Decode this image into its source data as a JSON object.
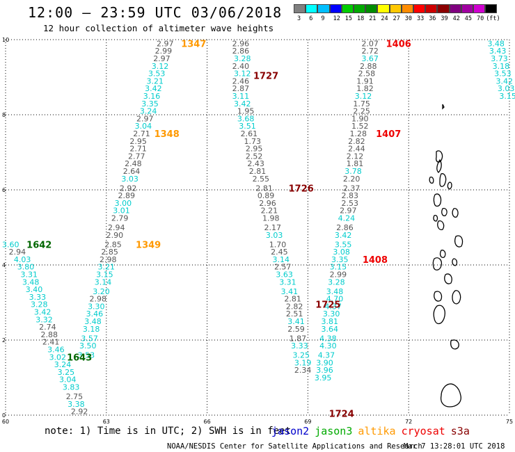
{
  "header": {
    "title": "12:00 – 23:59 UTC 03/06/2018",
    "subtitle": "12 hour collection of altimeter wave heights"
  },
  "legend": {
    "colors": [
      "#808080",
      "#00ffff",
      "#00bfff",
      "#0000ff",
      "#00cd00",
      "#00aa00",
      "#008c00",
      "#ffff00",
      "#ffc800",
      "#ff8c00",
      "#ff0000",
      "#cd0000",
      "#8b0000",
      "#800080",
      "#a000a0",
      "#d000d0",
      "#000000"
    ],
    "labels": [
      "3",
      "6",
      "9",
      "12",
      "15",
      "18",
      "21",
      "24",
      "27",
      "30",
      "33",
      "36",
      "39",
      "42",
      "45",
      "70",
      "(ft)"
    ]
  },
  "footer": {
    "note": "note: 1) Time is in UTC; 2) SWH is in feet",
    "credit": "NOAA/NESDIS Center for Satellite Applications and Research",
    "timestamp": "Mar  7 13:28:01 UTC 2018"
  },
  "satellites": [
    {
      "name": "jason2",
      "color": "#0000cc"
    },
    {
      "name": "jason3",
      "color": "#00aa00"
    },
    {
      "name": "altika",
      "color": "#ff9900"
    },
    {
      "name": "cryosat",
      "color": "#ee0000"
    },
    {
      "name": "s3a",
      "color": "#880000"
    }
  ],
  "chart_data": {
    "type": "scatter",
    "xlim": [
      60,
      75
    ],
    "ylim": [
      0,
      10
    ],
    "xticks": [
      "60",
      "63",
      "66",
      "69",
      "72",
      "75"
    ],
    "yticks": [
      "0",
      "2",
      "4",
      "6",
      "8",
      "10"
    ],
    "grid": true,
    "tracks": [
      {
        "time": "1642",
        "satellite": "jason3",
        "color": "#006600",
        "time_x": 61.0,
        "time_y": 4.55,
        "points": [
          [
            60.15,
            4.55,
            "3.60"
          ],
          [
            60.35,
            4.35,
            "2.94"
          ],
          [
            60.5,
            4.15,
            "4.03"
          ],
          [
            60.6,
            3.95,
            "3.80"
          ],
          [
            60.7,
            3.75,
            "3.31"
          ],
          [
            60.75,
            3.55,
            "3.48"
          ],
          [
            60.85,
            3.35,
            "3.40"
          ],
          [
            60.95,
            3.15,
            "3.33"
          ],
          [
            61.0,
            2.95,
            "3.28"
          ],
          [
            61.1,
            2.75,
            "3.42"
          ],
          [
            61.15,
            2.55,
            "3.32"
          ],
          [
            61.25,
            2.35,
            "2.74"
          ],
          [
            61.3,
            2.15,
            "2.88"
          ],
          [
            61.35,
            1.95,
            "2.41"
          ],
          [
            61.5,
            1.75,
            "3.46"
          ],
          [
            61.55,
            1.55,
            "3.02"
          ],
          [
            61.7,
            1.35,
            "3.24"
          ],
          [
            61.8,
            1.15,
            "3.25"
          ],
          [
            61.85,
            0.95,
            "3.04"
          ],
          [
            61.95,
            0.75,
            "3.83"
          ],
          [
            62.05,
            0.5,
            "2.75"
          ],
          [
            62.1,
            0.3,
            "3.38"
          ],
          [
            62.2,
            0.1,
            "2.92"
          ]
        ]
      },
      {
        "time": "1643",
        "satellite": "jason3",
        "color": "#006600",
        "time_x": 62.2,
        "time_y": 1.55,
        "points": []
      },
      {
        "time": "1347",
        "satellite": "altika",
        "color": "#ff9900",
        "time_x": 65.6,
        "time_y": 9.9,
        "points": [
          [
            64.75,
            9.9,
            "2.97"
          ],
          [
            64.7,
            9.7,
            "2.99"
          ],
          [
            64.65,
            9.5,
            "2.97"
          ],
          [
            64.6,
            9.3,
            "3.12"
          ],
          [
            64.5,
            9.1,
            "3.53"
          ],
          [
            64.45,
            8.9,
            "3.21"
          ],
          [
            64.4,
            8.7,
            "3.42"
          ],
          [
            64.35,
            8.5,
            "3.16"
          ],
          [
            64.3,
            8.3,
            "3.35"
          ],
          [
            64.25,
            8.1,
            "3.24"
          ],
          [
            64.15,
            7.9,
            "2.97"
          ],
          [
            64.1,
            7.7,
            "3.04"
          ],
          [
            64.05,
            7.5,
            "2.71"
          ],
          [
            63.95,
            7.3,
            "2.95"
          ],
          [
            63.95,
            7.1,
            "2.71"
          ],
          [
            63.9,
            6.9,
            "2.77"
          ],
          [
            63.8,
            6.7,
            "2.48"
          ],
          [
            63.75,
            6.5,
            "2.64"
          ],
          [
            63.7,
            6.3,
            "3.03"
          ],
          [
            63.65,
            6.05,
            "2.92"
          ],
          [
            63.6,
            5.85,
            "2.89"
          ],
          [
            63.5,
            5.65,
            "3.00"
          ],
          [
            63.45,
            5.45,
            "3.01"
          ],
          [
            63.4,
            5.25,
            "2.79"
          ],
          [
            63.3,
            5.0,
            "2.94"
          ],
          [
            63.25,
            4.8,
            "2.90"
          ],
          [
            63.2,
            4.55,
            "2.85"
          ],
          [
            63.1,
            4.35,
            "2.85"
          ],
          [
            63.05,
            4.15,
            "2.98"
          ],
          [
            63.0,
            3.95,
            "3.21"
          ],
          [
            62.95,
            3.75,
            "3.15"
          ],
          [
            62.9,
            3.55,
            "3.14"
          ],
          [
            62.85,
            3.3,
            "3.20"
          ],
          [
            62.75,
            3.1,
            "2.98"
          ],
          [
            62.7,
            2.9,
            "3.30"
          ],
          [
            62.65,
            2.7,
            "3.46"
          ],
          [
            62.6,
            2.5,
            "3.48"
          ],
          [
            62.55,
            2.3,
            "3.18"
          ],
          [
            62.5,
            2.05,
            "3.57"
          ],
          [
            62.45,
            1.85,
            "3.50"
          ],
          [
            62.4,
            1.6,
            "3.53"
          ]
        ]
      },
      {
        "time": "1348",
        "satellite": "altika",
        "color": "#ff9900",
        "time_x": 64.8,
        "time_y": 7.5,
        "points": []
      },
      {
        "time": "1349",
        "satellite": "altika",
        "color": "#ff9900",
        "time_x": 64.25,
        "time_y": 4.55,
        "points": []
      },
      {
        "time": "1727",
        "satellite": "s3a",
        "color": "#880000",
        "time_x": 67.75,
        "time_y": 9.05,
        "points": [
          [
            67.0,
            9.9,
            "2.96"
          ],
          [
            67.0,
            9.7,
            "2.86"
          ],
          [
            67.05,
            9.5,
            "3.28"
          ],
          [
            67.0,
            9.3,
            "2.40"
          ],
          [
            67.05,
            9.1,
            "3.12"
          ],
          [
            67.0,
            8.9,
            "2.46"
          ],
          [
            67.0,
            8.7,
            "2.87"
          ],
          [
            67.0,
            8.5,
            "3.11"
          ],
          [
            67.05,
            8.3,
            "3.42"
          ],
          [
            67.15,
            8.1,
            "1.95"
          ],
          [
            67.15,
            7.9,
            "3.68"
          ],
          [
            67.2,
            7.7,
            "3.51"
          ],
          [
            67.25,
            7.5,
            "2.61"
          ],
          [
            67.35,
            7.3,
            "1.73"
          ],
          [
            67.4,
            7.1,
            "2.95"
          ],
          [
            67.4,
            6.9,
            "2.52"
          ],
          [
            67.45,
            6.7,
            "2.43"
          ],
          [
            67.5,
            6.5,
            "2.81"
          ],
          [
            67.6,
            6.3,
            "2.55"
          ],
          [
            67.7,
            6.05,
            "2.81"
          ],
          [
            67.75,
            5.85,
            "0.89"
          ],
          [
            67.8,
            5.65,
            "2.96"
          ],
          [
            67.85,
            5.45,
            "2.21"
          ],
          [
            67.9,
            5.25,
            "1.98"
          ],
          [
            67.95,
            5.0,
            "2.17"
          ],
          [
            68.0,
            4.8,
            "3.03"
          ],
          [
            68.1,
            4.55,
            "1.70"
          ],
          [
            68.15,
            4.35,
            "2.45"
          ],
          [
            68.2,
            4.15,
            "3.14"
          ],
          [
            68.25,
            3.95,
            "2.57"
          ],
          [
            68.3,
            3.75,
            "3.63"
          ],
          [
            68.4,
            3.55,
            "3.31"
          ],
          [
            68.45,
            3.3,
            "3.41"
          ],
          [
            68.55,
            3.1,
            "2.81"
          ],
          [
            68.6,
            2.9,
            "2.82"
          ],
          [
            68.6,
            2.7,
            "2.51"
          ],
          [
            68.65,
            2.5,
            "3.41"
          ],
          [
            68.65,
            2.3,
            "2.59"
          ],
          [
            68.7,
            2.05,
            "1.87"
          ],
          [
            68.75,
            1.85,
            "3.33"
          ],
          [
            68.8,
            1.6,
            "3.25"
          ],
          [
            68.85,
            1.4,
            "3.19"
          ],
          [
            68.85,
            1.2,
            "2.34"
          ]
        ]
      },
      {
        "time": "1726",
        "satellite": "s3a",
        "color": "#880000",
        "time_x": 68.8,
        "time_y": 6.05,
        "points": []
      },
      {
        "time": "1725",
        "satellite": "s3a",
        "color": "#880000",
        "time_x": 69.6,
        "time_y": 2.95,
        "points": []
      },
      {
        "time": "1724",
        "satellite": "s3a",
        "color": "#880000",
        "time_x": 70.0,
        "time_y": 0.05,
        "points": []
      },
      {
        "time": "1406",
        "satellite": "cryosat",
        "color": "#ee0000",
        "time_x": 71.7,
        "time_y": 9.9,
        "points": [
          [
            70.85,
            9.9,
            "2.07"
          ],
          [
            70.85,
            9.7,
            "2.72"
          ],
          [
            70.85,
            9.5,
            "3.67"
          ],
          [
            70.8,
            9.3,
            "2.88"
          ],
          [
            70.75,
            9.1,
            "2.58"
          ],
          [
            70.7,
            8.9,
            "1.91"
          ],
          [
            70.7,
            8.7,
            "1.82"
          ],
          [
            70.65,
            8.5,
            "3.12"
          ],
          [
            70.6,
            8.3,
            "1.75"
          ],
          [
            70.6,
            8.1,
            "2.25"
          ],
          [
            70.55,
            7.9,
            "1.90"
          ],
          [
            70.55,
            7.7,
            "1.52"
          ],
          [
            70.5,
            7.5,
            "1.28"
          ],
          [
            70.45,
            7.3,
            "2.82"
          ],
          [
            70.45,
            7.1,
            "2.44"
          ],
          [
            70.4,
            6.9,
            "2.12"
          ],
          [
            70.4,
            6.7,
            "1.81"
          ],
          [
            70.35,
            6.5,
            "3.78"
          ],
          [
            70.3,
            6.3,
            "2.20"
          ],
          [
            70.3,
            6.05,
            "2.37"
          ],
          [
            70.25,
            5.85,
            "2.83"
          ],
          [
            70.25,
            5.65,
            "2.53"
          ],
          [
            70.2,
            5.45,
            "2.97"
          ],
          [
            70.15,
            5.25,
            "4.24"
          ],
          [
            70.1,
            5.0,
            "2.86"
          ],
          [
            70.05,
            4.8,
            "3.42"
          ],
          [
            70.05,
            4.55,
            "3.55"
          ],
          [
            70.0,
            4.35,
            "3.08"
          ],
          [
            69.95,
            4.15,
            "3.35"
          ],
          [
            69.9,
            3.95,
            "3.15"
          ],
          [
            69.9,
            3.75,
            "2.99"
          ],
          [
            69.85,
            3.55,
            "3.28"
          ],
          [
            69.8,
            3.3,
            "3.48"
          ],
          [
            69.8,
            3.1,
            "4.70"
          ],
          [
            69.75,
            2.9,
            "4.37"
          ],
          [
            69.7,
            2.7,
            "3.30"
          ],
          [
            69.65,
            2.5,
            "3.81"
          ],
          [
            69.65,
            2.3,
            "3.64"
          ],
          [
            69.6,
            2.05,
            "4.38"
          ],
          [
            69.6,
            1.85,
            "4.30"
          ],
          [
            69.55,
            1.6,
            "4.37"
          ],
          [
            69.5,
            1.4,
            "3.90"
          ],
          [
            69.5,
            1.2,
            "3.96"
          ],
          [
            69.45,
            1.0,
            "3.95"
          ]
        ]
      },
      {
        "time": "1407",
        "satellite": "cryosat",
        "color": "#ee0000",
        "time_x": 71.4,
        "time_y": 7.5,
        "points": []
      },
      {
        "time": "1408",
        "satellite": "cryosat",
        "color": "#ee0000",
        "time_x": 71.0,
        "time_y": 4.15,
        "points": []
      },
      {
        "time": "",
        "satellite": "edge",
        "color": "#00cccc",
        "time_x": null,
        "time_y": null,
        "points": [
          [
            74.6,
            9.9,
            "3.48"
          ],
          [
            74.65,
            9.7,
            "3.43"
          ],
          [
            74.7,
            9.5,
            "3.73"
          ],
          [
            74.75,
            9.3,
            "3.18"
          ],
          [
            74.8,
            9.1,
            "3.53"
          ],
          [
            74.85,
            8.9,
            "3.42"
          ],
          [
            74.9,
            8.7,
            "3.03"
          ],
          [
            74.95,
            8.5,
            "3.15"
          ]
        ]
      }
    ]
  }
}
